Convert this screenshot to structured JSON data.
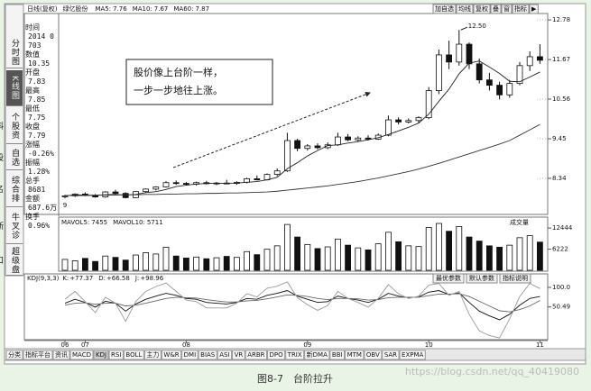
{
  "header": {
    "period": "日线(复权)",
    "stock": "绿亿股份",
    "buttons": [
      "加自选",
      "均线",
      "复权",
      "叠",
      "窗",
      "指标",
      "▶"
    ]
  },
  "sidebar": [
    "分时图",
    "K线图",
    "个股资料",
    "自选股",
    "综合排名",
    "牛叉诊断",
    "超级盘口"
  ],
  "info_panel": [
    {
      "label": "时间",
      "value": "2014 0703"
    },
    {
      "label": "数值",
      "value": "10.35"
    },
    {
      "label": "开盘",
      "value": "7.83"
    },
    {
      "label": "最高",
      "value": "7.85"
    },
    {
      "label": "最低",
      "value": "7.75"
    },
    {
      "label": "收盘",
      "value": "7.79"
    },
    {
      "label": "涨幅",
      "value": "-0.26%"
    },
    {
      "label": "振幅",
      "value": "1.28%"
    },
    {
      "label": "总手",
      "value": "8681"
    },
    {
      "label": "金额",
      "value": "687.6万"
    },
    {
      "label": "换手",
      "value": "0.96%"
    }
  ],
  "callout": [
    "股价像上台阶一样，",
    "一步一步地往上涨。"
  ],
  "chart_data": [
    {
      "type": "candlestick",
      "categories": [
        "06",
        null,
        "07",
        null,
        null,
        null,
        null,
        null,
        null,
        null,
        null,
        null,
        "08",
        null,
        null,
        null,
        null,
        null,
        null,
        null,
        null,
        null,
        null,
        null,
        "09",
        null,
        null,
        null,
        null,
        null,
        null,
        null,
        null,
        null,
        null,
        null,
        "10",
        null,
        null,
        null,
        null,
        null,
        null,
        null,
        null,
        null,
        null,
        "11"
      ],
      "open": [
        7.83,
        7.85,
        7.9,
        7.86,
        7.82,
        7.96,
        7.92,
        7.8,
        7.97,
        8.04,
        8.1,
        8.22,
        8.2,
        8.18,
        8.22,
        8.19,
        8.21,
        8.2,
        8.23,
        8.33,
        8.3,
        8.45,
        8.55,
        9.4,
        9.18,
        9.25,
        9.2,
        9.28,
        9.5,
        9.42,
        9.47,
        9.44,
        9.55,
        9.98,
        9.92,
        9.96,
        10.04,
        10.8,
        11.8,
        11.6,
        12.1,
        11.55,
        11.1,
        10.95,
        10.68,
        11.0,
        11.5,
        11.75
      ],
      "high": [
        7.88,
        7.92,
        7.95,
        7.9,
        7.98,
        8.02,
        7.95,
        7.98,
        8.06,
        8.12,
        8.26,
        8.28,
        8.24,
        8.25,
        8.27,
        8.24,
        8.3,
        8.26,
        8.36,
        8.42,
        8.48,
        8.62,
        9.62,
        9.45,
        9.3,
        9.32,
        9.35,
        9.62,
        9.58,
        9.52,
        9.55,
        9.6,
        10.1,
        10.05,
        10.02,
        10.08,
        10.9,
        11.95,
        12.2,
        12.5,
        12.15,
        11.7,
        11.3,
        11.05,
        11.1,
        11.6,
        11.9,
        12.1
      ],
      "low": [
        7.78,
        7.82,
        7.84,
        7.8,
        7.8,
        7.9,
        7.78,
        7.79,
        7.94,
        8.0,
        8.08,
        8.16,
        8.15,
        8.14,
        8.17,
        8.15,
        8.18,
        8.16,
        8.2,
        8.28,
        8.28,
        8.4,
        8.52,
        9.1,
        9.12,
        9.15,
        9.16,
        9.25,
        9.38,
        9.36,
        9.4,
        9.42,
        9.52,
        9.85,
        9.88,
        9.9,
        10.0,
        10.7,
        11.4,
        11.5,
        11.4,
        11.0,
        10.8,
        10.55,
        10.6,
        10.95,
        11.35,
        11.55
      ],
      "close": [
        7.85,
        7.9,
        7.86,
        7.82,
        7.96,
        7.92,
        7.8,
        7.97,
        8.04,
        8.1,
        8.22,
        8.2,
        8.18,
        8.22,
        8.19,
        8.21,
        8.2,
        8.23,
        8.33,
        8.3,
        8.45,
        8.55,
        9.4,
        9.18,
        9.25,
        9.2,
        9.28,
        9.5,
        9.42,
        9.47,
        9.44,
        9.55,
        9.98,
        9.92,
        9.96,
        10.04,
        10.8,
        11.8,
        11.6,
        12.1,
        11.55,
        11.1,
        10.95,
        10.68,
        11.0,
        11.5,
        11.75,
        11.65
      ],
      "indicators": [
        {
          "label": "MA5:",
          "value": 7.76,
          "color": "#222",
          "values": [
            7.85,
            7.88,
            7.87,
            7.86,
            7.88,
            7.89,
            7.87,
            7.89,
            7.94,
            7.97,
            8.03,
            8.11,
            8.15,
            8.18,
            8.2,
            8.2,
            8.2,
            8.21,
            8.23,
            8.25,
            8.3,
            8.37,
            8.61,
            8.78,
            8.97,
            9.12,
            9.26,
            9.28,
            9.33,
            9.37,
            9.42,
            9.48,
            9.57,
            9.67,
            9.77,
            9.89,
            10.14,
            10.5,
            10.84,
            11.27,
            11.57,
            11.63,
            11.46,
            11.28,
            11.06,
            11.05,
            11.18,
            11.32
          ]
        },
        {
          "label": "MA10:",
          "value": 7.67
        },
        {
          "label": "MA60:",
          "value": 7.87,
          "color": "#333",
          "values": [
            7.86,
            7.86,
            7.86,
            7.87,
            7.87,
            7.87,
            7.88,
            7.88,
            7.89,
            7.89,
            7.9,
            7.9,
            7.91,
            7.91,
            7.92,
            7.92,
            7.93,
            7.93,
            7.94,
            7.95,
            7.96,
            7.98,
            8.01,
            8.04,
            8.07,
            8.1,
            8.13,
            8.17,
            8.21,
            8.25,
            8.3,
            8.35,
            8.41,
            8.47,
            8.53,
            8.6,
            8.68,
            8.76,
            8.85,
            8.94,
            9.03,
            9.12,
            9.21,
            9.3,
            9.4,
            9.55,
            9.7,
            9.85
          ]
        }
      ],
      "peak_label": {
        "value": 12.5,
        "label": "12.50"
      },
      "low_note": "9",
      "ylim": [
        7.33,
        12.96
      ],
      "yticks": [
        8.34,
        9.45,
        10.56,
        11.67,
        12.78
      ]
    },
    {
      "type": "bar",
      "indicators": [
        {
          "label": "MAVOL5:",
          "value": 7455
        },
        {
          "label": "MAVOL10:",
          "value": 5711
        }
      ],
      "selector": "成交量",
      "values": [
        3200,
        2800,
        3500,
        2600,
        4200,
        3800,
        3000,
        4500,
        5200,
        4800,
        6800,
        4200,
        3600,
        3900,
        3400,
        3700,
        4100,
        3800,
        5500,
        4600,
        6200,
        7200,
        13500,
        9800,
        7600,
        6400,
        6900,
        9200,
        7400,
        6600,
        6000,
        7800,
        11200,
        8400,
        7200,
        7000,
        12600,
        13800,
        11500,
        12900,
        9800,
        8600,
        7200,
        6800,
        7400,
        9600,
        10200,
        8300
      ],
      "ylim": [
        0,
        14600
      ],
      "yticks": [
        6222,
        12444
      ]
    },
    {
      "type": "line",
      "title": "KDJ(9,3,3)",
      "buttons": [
        "最优参数",
        "默认参数",
        "指标说明"
      ],
      "series": [
        {
          "name": "K:",
          "value": 77.37,
          "value_label": "+77.37",
          "color": "#111",
          "values": [
            60,
            70,
            62,
            50,
            65,
            60,
            40,
            58,
            70,
            78,
            85,
            80,
            72,
            70,
            62,
            60,
            58,
            62,
            72,
            70,
            80,
            85,
            92,
            78,
            70,
            62,
            64,
            78,
            72,
            68,
            62,
            70,
            85,
            78,
            74,
            76,
            88,
            92,
            82,
            86,
            62,
            40,
            28,
            18,
            32,
            55,
            72,
            77
          ]
        },
        {
          "name": "D:",
          "value": 66.58,
          "value_label": "+66.58",
          "color": "#666",
          "values": [
            55,
            60,
            61,
            57,
            60,
            60,
            53,
            55,
            60,
            66,
            72,
            75,
            74,
            73,
            69,
            66,
            63,
            63,
            66,
            67,
            71,
            76,
            81,
            80,
            77,
            72,
            69,
            72,
            72,
            71,
            68,
            69,
            74,
            75,
            75,
            75,
            79,
            83,
            83,
            84,
            77,
            65,
            53,
            41,
            38,
            44,
            53,
            67
          ]
        },
        {
          "name": "J:",
          "value": 98.96,
          "value_label": "+98.96",
          "color": "#999",
          "values": [
            70,
            90,
            64,
            36,
            75,
            60,
            14,
            64,
            90,
            102,
            111,
            90,
            68,
            64,
            48,
            48,
            48,
            60,
            84,
            76,
            98,
            103,
            114,
            74,
            56,
            42,
            54,
            90,
            72,
            62,
            50,
            72,
            107,
            84,
            72,
            78,
            106,
            110,
            80,
            90,
            32,
            -10,
            -22,
            -28,
            20,
            77,
            110,
            97
          ]
        }
      ],
      "ylim": [
        -30,
        116
      ],
      "yticks": [
        {
          "value": 100,
          "label": "100.0"
        },
        50.49
      ]
    }
  ],
  "tabs": [
    "分类",
    "指标平台",
    "资讯",
    "MACD",
    "KDJ",
    "RSI",
    "BOLL",
    "主力",
    "W&R",
    "DMI",
    "BIAS",
    "ASI",
    "VR",
    "ARBR",
    "DPO",
    "TRIX",
    "新DMA",
    "BBI",
    "MTM",
    "OBV",
    "SAR",
    "EXPMA"
  ],
  "caption": "图8-7　台阶拉升",
  "watermark": "https://blog.csdn.net/qq_40419080"
}
